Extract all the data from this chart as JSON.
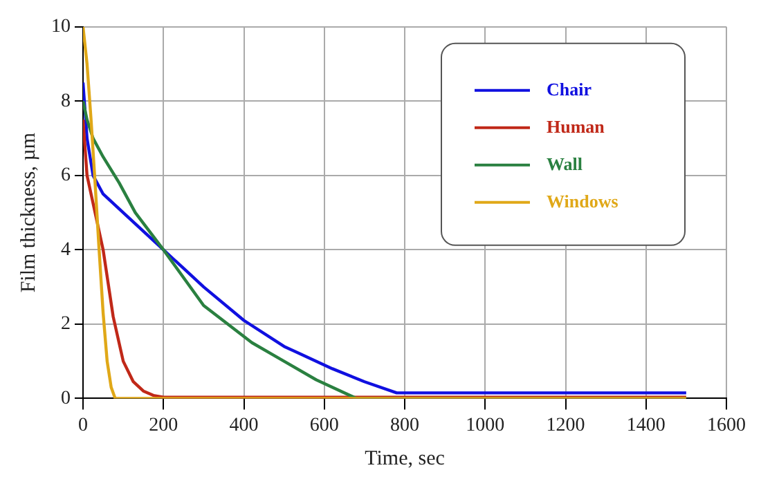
{
  "chart_data": {
    "type": "line",
    "xlabel": "Time, sec",
    "ylabel": "Film thickness, µm",
    "xlim": [
      0,
      1600
    ],
    "xticks": [
      0,
      200,
      400,
      600,
      800,
      1000,
      1200,
      1400,
      1600
    ],
    "ylim": [
      0,
      10
    ],
    "yticks": [
      0,
      2,
      4,
      6,
      8,
      10
    ],
    "grid": true,
    "legend": "top right",
    "marker": "none",
    "line_style": "solid",
    "series": [
      {
        "name": "Chair",
        "color": "#1010e0",
        "x": [
          0,
          10,
          25,
          50,
          100,
          180,
          250,
          300,
          400,
          500,
          620,
          700,
          780,
          1500
        ],
        "values": [
          8.5,
          7,
          6,
          5.5,
          5,
          4.2,
          3.5,
          3,
          2.1,
          1.4,
          0.8,
          0.45,
          0.15,
          0.15
        ]
      },
      {
        "name": "Human",
        "color": "#c02818",
        "x": [
          0,
          10,
          30,
          50,
          75,
          100,
          125,
          150,
          175,
          200,
          1500
        ],
        "values": [
          7.5,
          6,
          5,
          4,
          2.2,
          1,
          0.45,
          0.2,
          0.08,
          0.03,
          0.03
        ]
      },
      {
        "name": "Wall",
        "color": "#2a8040",
        "x": [
          0,
          10,
          25,
          50,
          90,
          130,
          200,
          300,
          420,
          500,
          580,
          680,
          1500
        ],
        "values": [
          8,
          7.5,
          7,
          6.5,
          5.8,
          5,
          4,
          2.5,
          1.5,
          1,
          0.5,
          0,
          0
        ]
      },
      {
        "name": "Windows",
        "color": "#e0a818",
        "x": [
          0,
          10,
          20,
          30,
          40,
          50,
          60,
          70,
          80,
          1500
        ],
        "values": [
          10,
          9,
          7.5,
          5.8,
          4,
          2.3,
          1,
          0.3,
          0,
          0
        ]
      }
    ]
  }
}
